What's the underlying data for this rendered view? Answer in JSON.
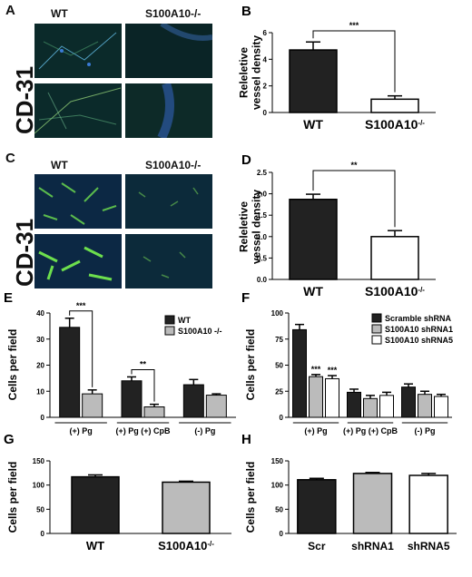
{
  "panels": {
    "A": {
      "label": "A",
      "col_titles": [
        "WT",
        "S100A10-/-"
      ],
      "stain": "CD-31"
    },
    "C": {
      "label": "C",
      "col_titles": [
        "WT",
        "S100A10-/-"
      ],
      "stain": "CD-31"
    }
  },
  "colors": {
    "black_bar": "#222222",
    "grey_bar": "#bbbbbb",
    "white_bar": "#ffffff",
    "micro_bg": "#0b2a2a"
  },
  "chart_data": [
    {
      "id": "B",
      "panel_label": "B",
      "type": "bar",
      "categories": [
        "WT",
        "S100A10-/-"
      ],
      "values": [
        4.7,
        1.0
      ],
      "errors": [
        0.6,
        0.25
      ],
      "bar_colors": [
        "black",
        "white"
      ],
      "ylabel": "Releletive\nvessel density",
      "ylim": [
        0,
        6
      ],
      "yticks": [
        "0",
        "2",
        "4",
        "6"
      ],
      "significance": [
        {
          "between": [
            0,
            1
          ],
          "label": "***"
        }
      ]
    },
    {
      "id": "D",
      "panel_label": "D",
      "type": "bar",
      "categories": [
        "WT",
        "S100A10-/-"
      ],
      "values": [
        1.87,
        1.0
      ],
      "errors": [
        0.12,
        0.14
      ],
      "bar_colors": [
        "black",
        "white"
      ],
      "ylabel": "Releletive\nvessel density",
      "ylim": [
        0,
        2.5
      ],
      "yticks": [
        "0.0",
        "0.5",
        "1.0",
        "1.5",
        "2.0",
        "2.5"
      ],
      "significance": [
        {
          "between": [
            0,
            1
          ],
          "label": "**"
        }
      ]
    },
    {
      "id": "E",
      "panel_label": "E",
      "type": "bar",
      "categories": [
        "(+) Pg",
        "(+) Pg (+) CpB",
        "(-) Pg"
      ],
      "series": [
        {
          "name": "WT",
          "values": [
            34.5,
            14.0,
            12.5
          ],
          "errors": [
            3.5,
            1.5,
            2.0
          ]
        },
        {
          "name": "S100A10 -/-",
          "values": [
            9.0,
            4.0,
            8.5
          ],
          "errors": [
            1.5,
            1.0,
            0.5
          ]
        }
      ],
      "series_colors": [
        "black",
        "grey"
      ],
      "ylabel": "Cells per field",
      "ylim": [
        0,
        40
      ],
      "yticks": [
        "0",
        "10",
        "20",
        "30",
        "40"
      ],
      "significance": [
        {
          "group": 0,
          "label": "***"
        },
        {
          "group": 1,
          "label": "**"
        }
      ],
      "legend_position": "top-right"
    },
    {
      "id": "F",
      "panel_label": "F",
      "type": "bar",
      "categories": [
        "(+) Pg",
        "(+) Pg (+) CpB",
        "(-) Pg"
      ],
      "series": [
        {
          "name": "Scramble shRNA",
          "values": [
            84,
            24,
            29
          ],
          "errors": [
            5,
            3,
            3
          ]
        },
        {
          "name": "S100A10 shRNA1",
          "values": [
            39,
            18,
            22
          ],
          "errors": [
            2,
            3,
            3
          ]
        },
        {
          "name": "S100A10 shRNA5",
          "values": [
            37,
            21,
            20
          ],
          "errors": [
            3,
            3,
            2
          ]
        }
      ],
      "series_colors": [
        "black",
        "grey",
        "white"
      ],
      "ylabel": "Cells per field",
      "ylim": [
        0,
        100
      ],
      "yticks": [
        "0",
        "25",
        "50",
        "75",
        "100"
      ],
      "annotations": [
        {
          "group": 0,
          "series": 1,
          "label": "***"
        },
        {
          "group": 0,
          "series": 2,
          "label": "***"
        }
      ],
      "legend_position": "top-right"
    },
    {
      "id": "G",
      "panel_label": "G",
      "type": "bar",
      "categories": [
        "WT",
        "S100A10-/-"
      ],
      "values": [
        117,
        106
      ],
      "errors": [
        4,
        2
      ],
      "bar_colors": [
        "black",
        "grey"
      ],
      "ylabel": "Cells per field",
      "ylim": [
        0,
        150
      ],
      "yticks": [
        "0",
        "50",
        "100",
        "150"
      ]
    },
    {
      "id": "H",
      "panel_label": "H",
      "type": "bar",
      "categories": [
        "Scr",
        "shRNA1",
        "shRNA5"
      ],
      "values": [
        111,
        124,
        120
      ],
      "errors": [
        3,
        2,
        4
      ],
      "bar_colors": [
        "black",
        "grey",
        "white"
      ],
      "ylabel": "Cells per field",
      "ylim": [
        0,
        150
      ],
      "yticks": [
        "0",
        "50",
        "100",
        "150"
      ]
    }
  ]
}
